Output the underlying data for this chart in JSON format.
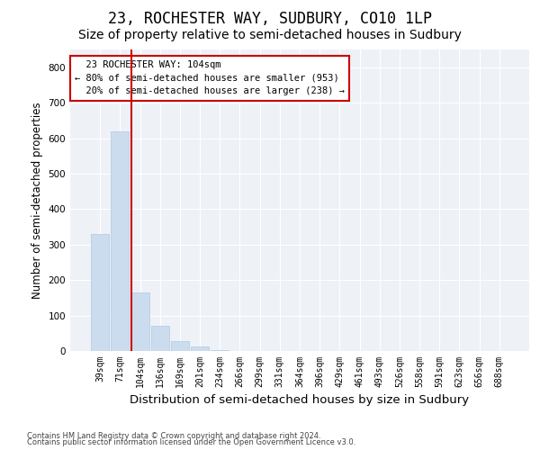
{
  "title": "23, ROCHESTER WAY, SUDBURY, CO10 1LP",
  "subtitle": "Size of property relative to semi-detached houses in Sudbury",
  "xlabel": "Distribution of semi-detached houses by size in Sudbury",
  "ylabel": "Number of semi-detached properties",
  "categories": [
    "39sqm",
    "71sqm",
    "104sqm",
    "136sqm",
    "169sqm",
    "201sqm",
    "234sqm",
    "266sqm",
    "299sqm",
    "331sqm",
    "364sqm",
    "396sqm",
    "429sqm",
    "461sqm",
    "493sqm",
    "526sqm",
    "558sqm",
    "591sqm",
    "623sqm",
    "656sqm",
    "688sqm"
  ],
  "values": [
    330,
    620,
    165,
    70,
    27,
    12,
    3,
    0,
    0,
    0,
    0,
    0,
    0,
    0,
    0,
    0,
    0,
    0,
    0,
    0,
    0
  ],
  "bar_color": "#ccdcef",
  "bar_edge_color": "#b0c8e0",
  "vline_color": "#cc0000",
  "annotation_text": "  23 ROCHESTER WAY: 104sqm\n← 80% of semi-detached houses are smaller (953)\n  20% of semi-detached houses are larger (238) →",
  "annotation_box_color": "#ffffff",
  "annotation_box_edge_color": "#cc0000",
  "ylim": [
    0,
    850
  ],
  "yticks": [
    0,
    100,
    200,
    300,
    400,
    500,
    600,
    700,
    800
  ],
  "footer_line1": "Contains HM Land Registry data © Crown copyright and database right 2024.",
  "footer_line2": "Contains public sector information licensed under the Open Government Licence v3.0.",
  "plot_bg_color": "#eef2f7",
  "title_fontsize": 12,
  "subtitle_fontsize": 10,
  "tick_fontsize": 7,
  "ylabel_fontsize": 8.5,
  "xlabel_fontsize": 9.5,
  "annotation_fontsize": 7.5,
  "footer_fontsize": 6
}
